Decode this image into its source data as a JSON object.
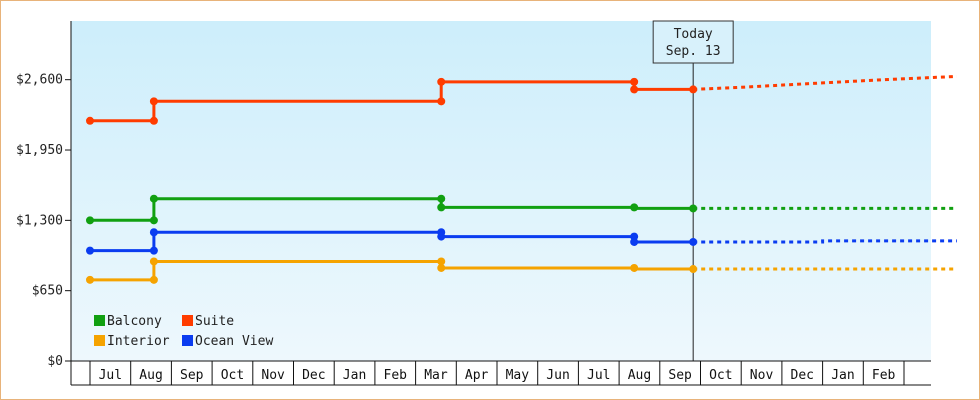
{
  "chart_data": {
    "type": "line",
    "title": "",
    "xlabel": "",
    "ylabel": "",
    "x_categories": [
      "Jul",
      "Aug",
      "Sep",
      "Oct",
      "Nov",
      "Dec",
      "Jan",
      "Feb",
      "Mar",
      "Apr",
      "May",
      "Jun",
      "Jul",
      "Aug",
      "Sep",
      "Oct",
      "Nov",
      "Dec",
      "Jan",
      "Feb"
    ],
    "y_ticks": [
      "$0",
      "$650",
      "$1,300",
      "$1,950",
      "$2,600"
    ],
    "ylim": [
      0,
      3050
    ],
    "grid": false,
    "legend_position": "bottom-left",
    "background_gradient": [
      "#cdeefb",
      "#eef8fd"
    ],
    "today": {
      "label_line1": "Today",
      "label_line2": "Sep. 13",
      "x": 14.32
    },
    "series": [
      {
        "name": "Suite",
        "color": "#ff3c00",
        "points": [
          [
            -0.5,
            2220
          ],
          [
            1.07,
            2220
          ],
          [
            1.07,
            2400
          ],
          [
            8.13,
            2400
          ],
          [
            8.13,
            2580
          ],
          [
            12.87,
            2580
          ],
          [
            12.87,
            2510
          ],
          [
            14.32,
            2510
          ]
        ],
        "markers": [
          [
            -0.5,
            2220
          ],
          [
            1.07,
            2220
          ],
          [
            1.07,
            2400
          ],
          [
            8.13,
            2400
          ],
          [
            8.13,
            2580
          ],
          [
            12.87,
            2580
          ],
          [
            12.87,
            2510
          ],
          [
            14.32,
            2510
          ]
        ],
        "forecast": [
          [
            14.32,
            2510
          ],
          [
            15.5,
            2530
          ],
          [
            17.5,
            2570
          ],
          [
            19,
            2600
          ],
          [
            20.8,
            2630
          ]
        ]
      },
      {
        "name": "Balcony",
        "color": "#11a011",
        "points": [
          [
            -0.5,
            1300
          ],
          [
            1.07,
            1300
          ],
          [
            1.07,
            1500
          ],
          [
            8.13,
            1500
          ],
          [
            8.13,
            1420
          ],
          [
            12.87,
            1420
          ],
          [
            12.87,
            1410
          ],
          [
            14.32,
            1410
          ]
        ],
        "markers": [
          [
            -0.5,
            1300
          ],
          [
            1.07,
            1300
          ],
          [
            1.07,
            1500
          ],
          [
            8.13,
            1500
          ],
          [
            8.13,
            1420
          ],
          [
            12.87,
            1420
          ],
          [
            14.32,
            1410
          ]
        ],
        "forecast": [
          [
            14.32,
            1410
          ],
          [
            20.8,
            1410
          ]
        ]
      },
      {
        "name": "Ocean View",
        "color": "#0a3cf0",
        "points": [
          [
            -0.5,
            1020
          ],
          [
            1.07,
            1020
          ],
          [
            1.07,
            1190
          ],
          [
            8.13,
            1190
          ],
          [
            8.13,
            1150
          ],
          [
            12.87,
            1150
          ],
          [
            12.87,
            1100
          ],
          [
            14.32,
            1100
          ]
        ],
        "markers": [
          [
            -0.5,
            1020
          ],
          [
            1.07,
            1020
          ],
          [
            1.07,
            1190
          ],
          [
            8.13,
            1190
          ],
          [
            8.13,
            1150
          ],
          [
            12.87,
            1150
          ],
          [
            12.87,
            1100
          ],
          [
            14.32,
            1100
          ]
        ],
        "forecast": [
          [
            14.32,
            1100
          ],
          [
            17.5,
            1100
          ],
          [
            17.5,
            1110
          ],
          [
            20.8,
            1110
          ]
        ]
      },
      {
        "name": "Interior",
        "color": "#f5a300",
        "points": [
          [
            -0.5,
            750
          ],
          [
            1.07,
            750
          ],
          [
            1.07,
            920
          ],
          [
            8.13,
            920
          ],
          [
            8.13,
            860
          ],
          [
            12.87,
            860
          ],
          [
            12.87,
            850
          ],
          [
            14.32,
            850
          ]
        ],
        "markers": [
          [
            -0.5,
            750
          ],
          [
            1.07,
            750
          ],
          [
            1.07,
            920
          ],
          [
            8.13,
            920
          ],
          [
            8.13,
            860
          ],
          [
            12.87,
            860
          ],
          [
            14.32,
            850
          ]
        ],
        "forecast": [
          [
            14.32,
            850
          ],
          [
            20.8,
            850
          ]
        ]
      }
    ],
    "legend": [
      {
        "name": "Balcony",
        "color": "#11a011"
      },
      {
        "name": "Suite",
        "color": "#ff3c00"
      },
      {
        "name": "Interior",
        "color": "#f5a300"
      },
      {
        "name": "Ocean View",
        "color": "#0a3cf0"
      }
    ]
  }
}
